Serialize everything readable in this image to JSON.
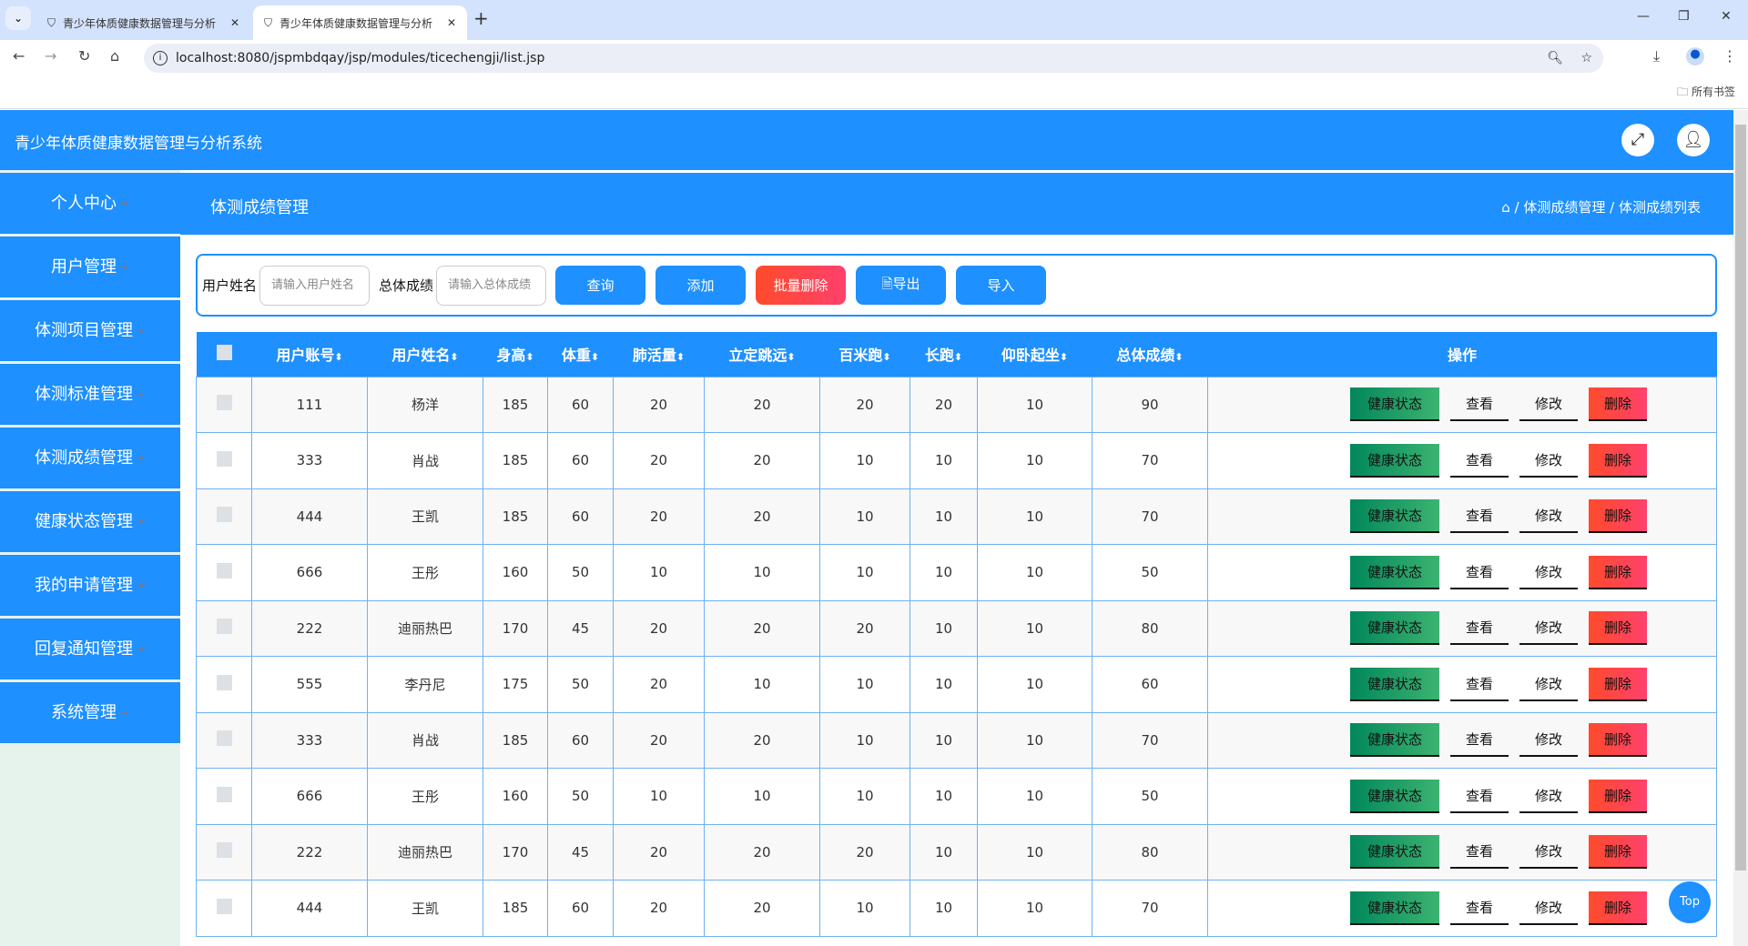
{
  "browser": {
    "tabs": [
      {
        "title": "青少年体质健康数据管理与分析"
      },
      {
        "title": "青少年体质健康数据管理与分析"
      }
    ],
    "url": "localhost:8080/jspmbdqay/jsp/modules/ticechengji/list.jsp",
    "bookmarks_label": "所有书签"
  },
  "header": {
    "title": "青少年体质健康数据管理与分析系统"
  },
  "sidebar": {
    "items": [
      {
        "label": "个人中心"
      },
      {
        "label": "用户管理"
      },
      {
        "label": "体测项目管理"
      },
      {
        "label": "体测标准管理"
      },
      {
        "label": "体测成绩管理"
      },
      {
        "label": "健康状态管理"
      },
      {
        "label": "我的申请管理"
      },
      {
        "label": "回复通知管理"
      },
      {
        "label": "系统管理"
      }
    ]
  },
  "content": {
    "title": "体测成绩管理",
    "breadcrumb": [
      "体测成绩管理",
      "体测成绩列表"
    ]
  },
  "filter": {
    "name_label": "用户姓名",
    "name_placeholder": "请输入用户姓名",
    "score_label": "总体成绩",
    "score_placeholder": "请输入总体成绩",
    "query": "查询",
    "add": "添加",
    "batch_delete": "批量删除",
    "export": "导出",
    "import": "导入"
  },
  "table": {
    "columns": [
      "用户账号",
      "用户姓名",
      "身高",
      "体重",
      "肺活量",
      "立定跳远",
      "百米跑",
      "长跑",
      "仰卧起坐",
      "总体成绩"
    ],
    "action_header": "操作",
    "actions": {
      "health": "健康状态",
      "view": "查看",
      "edit": "修改",
      "delete": "删除"
    },
    "rows": [
      [
        "111",
        "杨洋",
        "185",
        "60",
        "20",
        "20",
        "20",
        "20",
        "10",
        "90"
      ],
      [
        "333",
        "肖战",
        "185",
        "60",
        "20",
        "20",
        "10",
        "10",
        "10",
        "70"
      ],
      [
        "444",
        "王凯",
        "185",
        "60",
        "20",
        "20",
        "10",
        "10",
        "10",
        "70"
      ],
      [
        "666",
        "王彤",
        "160",
        "50",
        "10",
        "10",
        "10",
        "10",
        "10",
        "50"
      ],
      [
        "222",
        "迪丽热巴",
        "170",
        "45",
        "20",
        "20",
        "20",
        "10",
        "10",
        "80"
      ],
      [
        "555",
        "李丹尼",
        "175",
        "50",
        "20",
        "10",
        "10",
        "10",
        "10",
        "60"
      ],
      [
        "333",
        "肖战",
        "185",
        "60",
        "20",
        "20",
        "10",
        "10",
        "10",
        "70"
      ],
      [
        "666",
        "王彤",
        "160",
        "50",
        "10",
        "10",
        "10",
        "10",
        "10",
        "50"
      ],
      [
        "222",
        "迪丽热巴",
        "170",
        "45",
        "20",
        "20",
        "20",
        "10",
        "10",
        "80"
      ],
      [
        "444",
        "王凯",
        "185",
        "60",
        "20",
        "20",
        "10",
        "10",
        "10",
        "70"
      ]
    ]
  },
  "top_button": "Top"
}
